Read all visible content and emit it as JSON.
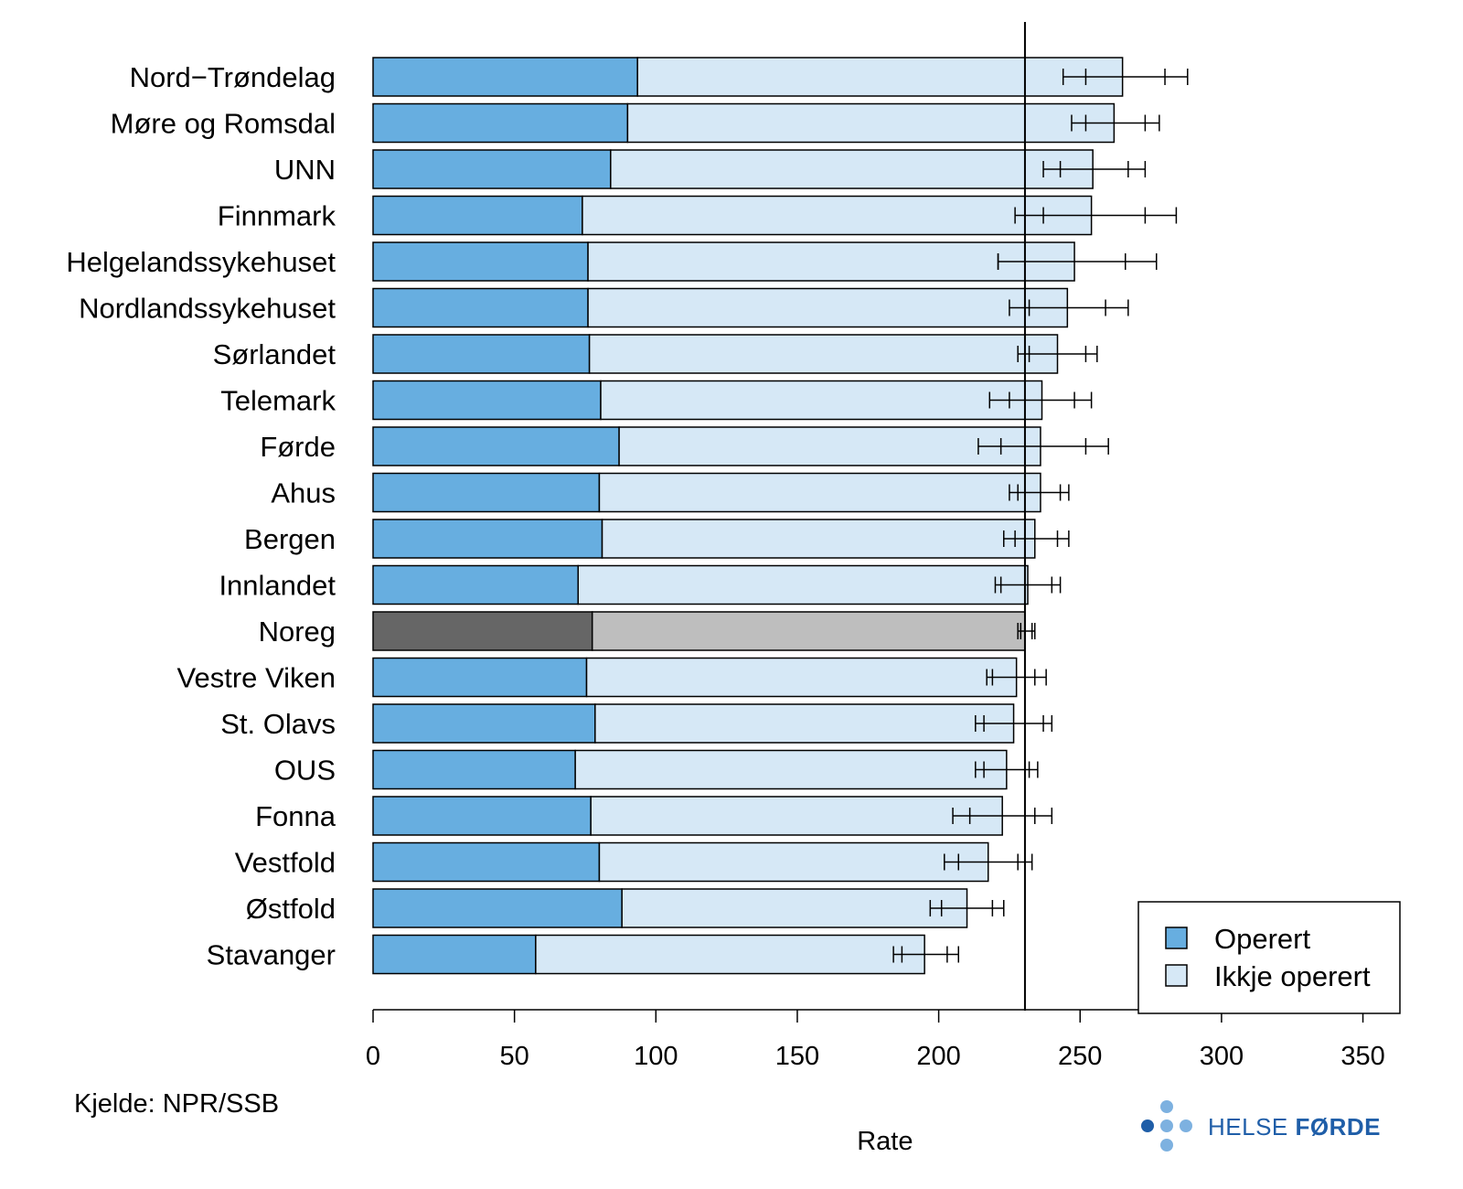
{
  "chart_data": {
    "type": "bar",
    "orientation": "horizontal",
    "stacked": true,
    "categories": [
      "Nord−Trøndelag",
      "Møre og Romsdal",
      "UNN",
      "Finnmark",
      "Helgelandssykehuset",
      "Nordlandssykehuset",
      "Sørlandet",
      "Telemark",
      "Førde",
      "Ahus",
      "Bergen",
      "Innlandet",
      "Noreg",
      "Vestre Viken",
      "St. Olavs",
      "OUS",
      "Fonna",
      "Vestfold",
      "Østfold",
      "Stavanger"
    ],
    "series": [
      {
        "name": "Operert",
        "values": [
          93.5,
          90,
          84,
          74,
          76,
          76,
          76.5,
          80.5,
          87,
          80,
          81,
          72.5,
          77.5,
          75.5,
          78.5,
          71.5,
          77,
          80,
          88,
          57.5
        ]
      },
      {
        "name": "Ikkje operert",
        "values": [
          171.5,
          172,
          170.5,
          180,
          172,
          169.5,
          165.5,
          156,
          149,
          156,
          153,
          159,
          153,
          152,
          148,
          152.5,
          145.5,
          137.5,
          122,
          137.5
        ]
      }
    ],
    "totals": [
      265,
      262,
      254.5,
      254,
      248,
      245.5,
      242,
      236.5,
      236,
      236,
      234,
      231.5,
      230.5,
      227.5,
      226.5,
      224,
      222.5,
      217.5,
      210,
      195
    ],
    "intervals": [
      {
        "outer": [
          244,
          288
        ],
        "inner": [
          252,
          280
        ]
      },
      {
        "outer": [
          247,
          278
        ],
        "inner": [
          252,
          273
        ]
      },
      {
        "outer": [
          237,
          273
        ],
        "inner": [
          243,
          267
        ]
      },
      {
        "outer": [
          227,
          284
        ],
        "inner": [
          237,
          273
        ]
      },
      {
        "outer": [
          221,
          277
        ],
        "inner": [
          221,
          266
        ]
      },
      {
        "outer": [
          225,
          267
        ],
        "inner": [
          232,
          259
        ]
      },
      {
        "outer": [
          228,
          256
        ],
        "inner": [
          232,
          252
        ]
      },
      {
        "outer": [
          218,
          254
        ],
        "inner": [
          225,
          248
        ]
      },
      {
        "outer": [
          214,
          260
        ],
        "inner": [
          222,
          252
        ]
      },
      {
        "outer": [
          225,
          246
        ],
        "inner": [
          228,
          243
        ]
      },
      {
        "outer": [
          223,
          246
        ],
        "inner": [
          227,
          242
        ]
      },
      {
        "outer": [
          220,
          243
        ],
        "inner": [
          222,
          240
        ]
      },
      {
        "outer": [
          228,
          234
        ],
        "inner": [
          229,
          233
        ]
      },
      {
        "outer": [
          217,
          238
        ],
        "inner": [
          219,
          234
        ]
      },
      {
        "outer": [
          213,
          240
        ],
        "inner": [
          216,
          237
        ]
      },
      {
        "outer": [
          213,
          235
        ],
        "inner": [
          216,
          232
        ]
      },
      {
        "outer": [
          205,
          240
        ],
        "inner": [
          211,
          234
        ]
      },
      {
        "outer": [
          202,
          233
        ],
        "inner": [
          207,
          228
        ]
      },
      {
        "outer": [
          197,
          223
        ],
        "inner": [
          201,
          219
        ]
      },
      {
        "outer": [
          184,
          207
        ],
        "inner": [
          187,
          203
        ]
      }
    ],
    "highlight_category": "Noreg",
    "reference_line": 230.5,
    "xlim": [
      0,
      363
    ],
    "xticks": [
      0,
      50,
      100,
      150,
      200,
      250,
      300,
      350
    ],
    "xlabel": "Rate",
    "ylabel": "",
    "title": "",
    "legend": {
      "entries": [
        "Operert",
        "Ikkje operert"
      ],
      "position": "bottom-right"
    },
    "colors": {
      "operert": "#67aee0",
      "ikkje_operert": "#d6e8f6",
      "operert_highlight": "#666666",
      "ikkje_operert_highlight": "#bebebe",
      "outline": "#000000"
    }
  },
  "source": "Kjelde: NPR/SSB",
  "logo": {
    "text_light": "HELSE ",
    "text_bold": "FØRDE",
    "colors": {
      "dark": "#1f5ea8",
      "light": "#7db1e0"
    }
  }
}
